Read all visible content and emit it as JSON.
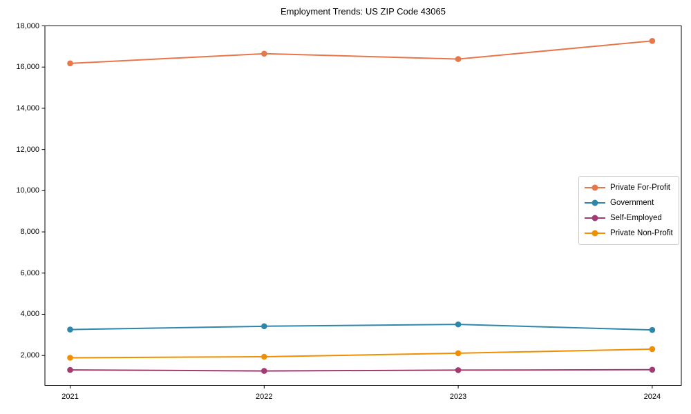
{
  "title": "Employment Trends: US ZIP Code 43065",
  "chart_data": {
    "type": "line",
    "title": "Employment Trends: US ZIP Code 43065",
    "x": [
      2021,
      2022,
      2023,
      2024
    ],
    "series": [
      {
        "name": "Private For-Profit",
        "color": "#E8764B",
        "values": [
          16180,
          16650,
          16390,
          17270
        ]
      },
      {
        "name": "Government",
        "color": "#2E86AB",
        "values": [
          3260,
          3420,
          3510,
          3240
        ]
      },
      {
        "name": "Self-Employed",
        "color": "#A23B72",
        "values": [
          1300,
          1250,
          1290,
          1310
        ]
      },
      {
        "name": "Private Non-Profit",
        "color": "#F18F01",
        "values": [
          1890,
          1940,
          2110,
          2310
        ]
      }
    ],
    "xlabel": "",
    "ylabel": "",
    "xlim": [
      2020.87,
      2024.15
    ],
    "ylim": [
      550,
      18000
    ],
    "yticks": [
      2000,
      4000,
      6000,
      8000,
      10000,
      12000,
      14000,
      16000,
      18000
    ],
    "xticks": [
      2021,
      2022,
      2023,
      2024
    ],
    "grid": false,
    "legend_position": "center right",
    "marker": "circle",
    "axis_color": "#000000"
  }
}
